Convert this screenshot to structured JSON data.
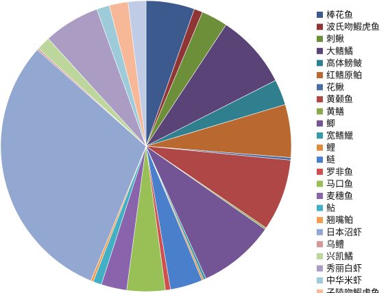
{
  "chart_data": {
    "type": "pie",
    "start_angle_deg": 0,
    "direction": "clockwise",
    "legend_position": "right",
    "slices": [
      {
        "label": "棒花鱼",
        "value": 5.7,
        "color": "#3d5a8f"
      },
      {
        "label": "波氏吻鰕虎鱼",
        "value": 1.0,
        "color": "#8f3535"
      },
      {
        "label": "刺鳅",
        "value": 3.1,
        "color": "#6e8f3a"
      },
      {
        "label": "大鳍鱊",
        "value": 8.7,
        "color": "#5a4377"
      },
      {
        "label": "高体鳑鲏",
        "value": 3.0,
        "color": "#2f7f8f"
      },
      {
        "label": "红鳍原鲌",
        "value": 6.2,
        "color": "#b9682f"
      },
      {
        "label": "花鳅",
        "value": 0.3,
        "color": "#4a6da6"
      },
      {
        "label": "黄颡鱼",
        "value": 8.4,
        "color": "#b04747"
      },
      {
        "label": "黄鳝",
        "value": 0.2,
        "color": "#8aa84a"
      },
      {
        "label": "鲫",
        "value": 9.0,
        "color": "#735494"
      },
      {
        "label": "宽鳍鱲",
        "value": 0.3,
        "color": "#3899ab"
      },
      {
        "label": "鲤",
        "value": 0.2,
        "color": "#dd8a3e"
      },
      {
        "label": "鲢",
        "value": 3.8,
        "color": "#4a7fcc"
      },
      {
        "label": "罗非鱼",
        "value": 0.6,
        "color": "#cf4e4e"
      },
      {
        "label": "马口鱼",
        "value": 4.5,
        "color": "#98c057"
      },
      {
        "label": "麦穗鱼",
        "value": 3.0,
        "color": "#8964ad"
      },
      {
        "label": "鲇",
        "value": 1.0,
        "color": "#42b0c4"
      },
      {
        "label": "翘嘴鲌",
        "value": 0.3,
        "color": "#f29d4d"
      },
      {
        "label": "日本沼虾",
        "value": 32.0,
        "color": "#93a8d1"
      },
      {
        "label": "乌鳢",
        "value": 0.2,
        "color": "#d59898"
      },
      {
        "label": "兴凯鱊",
        "value": 1.6,
        "color": "#bcd69c"
      },
      {
        "label": "秀丽白虾",
        "value": 6.6,
        "color": "#aa9cc2"
      },
      {
        "label": "中华米虾",
        "value": 1.5,
        "color": "#9ecbda"
      },
      {
        "label": "子陵吻鰕虎鱼",
        "value": 2.2,
        "color": "#f6b896"
      },
      {
        "label": "",
        "value": 2.1,
        "color": "#c0cbe5",
        "legend": false
      }
    ]
  }
}
